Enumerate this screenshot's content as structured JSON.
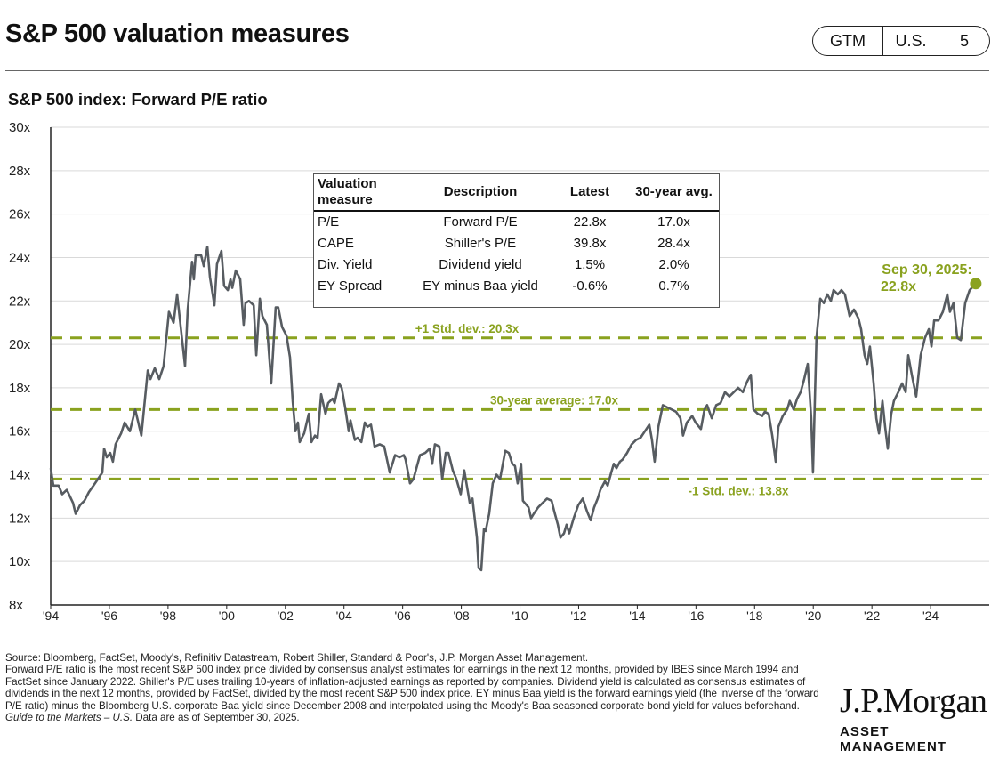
{
  "header": {
    "title": "S&P 500 valuation measures",
    "badge": [
      "GTM",
      "U.S.",
      "5"
    ]
  },
  "colors": {
    "line": "#575c61",
    "accent": "#8aa21f",
    "grid": "#d9d9d9"
  },
  "chart_data": {
    "type": "line",
    "title": "S&P 500 index: Forward P/E ratio",
    "xlabel": "",
    "ylabel": "",
    "ylim": [
      8,
      30
    ],
    "xlim": [
      1994,
      2025.75
    ],
    "grid": true,
    "y_ticks": [
      "8x",
      "10x",
      "12x",
      "14x",
      "16x",
      "18x",
      "20x",
      "22x",
      "24x",
      "26x",
      "28x",
      "30x"
    ],
    "y_tick_values": [
      8,
      10,
      12,
      14,
      16,
      18,
      20,
      22,
      24,
      26,
      28,
      30
    ],
    "x_ticks": [
      "'94",
      "'96",
      "'98",
      "'00",
      "'02",
      "'04",
      "'06",
      "'08",
      "'10",
      "'12",
      "'14",
      "'16",
      "'18",
      "'20",
      "'22",
      "'24"
    ],
    "x_tick_values": [
      1994,
      1996,
      1998,
      2000,
      2002,
      2004,
      2006,
      2008,
      2010,
      2012,
      2014,
      2016,
      2018,
      2020,
      2022,
      2024
    ],
    "series": [
      {
        "name": "Forward P/E",
        "points": [
          [
            1994.0,
            14.3
          ],
          [
            1994.09,
            13.5
          ],
          [
            1994.27,
            13.5
          ],
          [
            1994.39,
            13.1
          ],
          [
            1994.55,
            13.3
          ],
          [
            1994.76,
            12.7
          ],
          [
            1994.85,
            12.2
          ],
          [
            1995.0,
            12.6
          ],
          [
            1995.15,
            12.8
          ],
          [
            1995.3,
            13.2
          ],
          [
            1995.46,
            13.5
          ],
          [
            1995.61,
            13.8
          ],
          [
            1995.76,
            14.1
          ],
          [
            1995.82,
            15.2
          ],
          [
            1995.91,
            14.8
          ],
          [
            1996.03,
            15.0
          ],
          [
            1996.12,
            14.6
          ],
          [
            1996.21,
            15.4
          ],
          [
            1996.4,
            15.9
          ],
          [
            1996.52,
            16.4
          ],
          [
            1996.7,
            16.0
          ],
          [
            1996.88,
            17.0
          ],
          [
            1997.09,
            15.8
          ],
          [
            1997.31,
            18.8
          ],
          [
            1997.4,
            18.4
          ],
          [
            1997.55,
            18.9
          ],
          [
            1997.7,
            18.4
          ],
          [
            1997.85,
            19.0
          ],
          [
            1998.03,
            21.5
          ],
          [
            1998.19,
            21.0
          ],
          [
            1998.31,
            22.3
          ],
          [
            1998.58,
            19.0
          ],
          [
            1998.67,
            21.6
          ],
          [
            1998.82,
            23.8
          ],
          [
            1998.88,
            23.0
          ],
          [
            1998.94,
            24.1
          ],
          [
            1999.13,
            24.1
          ],
          [
            1999.22,
            23.6
          ],
          [
            1999.34,
            24.5
          ],
          [
            1999.43,
            23.1
          ],
          [
            1999.58,
            21.8
          ],
          [
            1999.67,
            23.7
          ],
          [
            1999.82,
            24.3
          ],
          [
            1999.91,
            22.7
          ],
          [
            2000.04,
            22.5
          ],
          [
            2000.13,
            23.0
          ],
          [
            2000.19,
            22.6
          ],
          [
            2000.31,
            23.4
          ],
          [
            2000.46,
            23.0
          ],
          [
            2000.58,
            20.9
          ],
          [
            2000.64,
            21.9
          ],
          [
            2000.76,
            22.0
          ],
          [
            2000.92,
            21.8
          ],
          [
            2001.01,
            19.5
          ],
          [
            2001.13,
            22.1
          ],
          [
            2001.22,
            21.3
          ],
          [
            2001.37,
            20.9
          ],
          [
            2001.52,
            18.2
          ],
          [
            2001.67,
            21.7
          ],
          [
            2001.76,
            21.7
          ],
          [
            2001.89,
            20.8
          ],
          [
            2002.04,
            20.4
          ],
          [
            2002.16,
            19.4
          ],
          [
            2002.25,
            17.4
          ],
          [
            2002.34,
            16.0
          ],
          [
            2002.43,
            16.4
          ],
          [
            2002.49,
            15.5
          ],
          [
            2002.64,
            15.9
          ],
          [
            2002.8,
            16.8
          ],
          [
            2002.89,
            15.5
          ],
          [
            2003.01,
            15.8
          ],
          [
            2003.1,
            15.7
          ],
          [
            2003.22,
            17.7
          ],
          [
            2003.37,
            16.8
          ],
          [
            2003.46,
            17.3
          ],
          [
            2003.61,
            17.5
          ],
          [
            2003.68,
            17.3
          ],
          [
            2003.83,
            18.2
          ],
          [
            2003.92,
            18.0
          ],
          [
            2004.04,
            17.1
          ],
          [
            2004.16,
            16.0
          ],
          [
            2004.22,
            16.5
          ],
          [
            2004.37,
            15.6
          ],
          [
            2004.46,
            15.7
          ],
          [
            2004.59,
            15.5
          ],
          [
            2004.71,
            16.4
          ],
          [
            2004.8,
            16.2
          ],
          [
            2004.92,
            16.3
          ],
          [
            2005.04,
            15.3
          ],
          [
            2005.22,
            15.4
          ],
          [
            2005.37,
            15.3
          ],
          [
            2005.56,
            14.1
          ],
          [
            2005.74,
            14.9
          ],
          [
            2005.89,
            14.8
          ],
          [
            2006.04,
            14.9
          ],
          [
            2006.1,
            14.7
          ],
          [
            2006.25,
            13.6
          ],
          [
            2006.37,
            13.8
          ],
          [
            2006.59,
            14.9
          ],
          [
            2006.77,
            15.0
          ],
          [
            2006.92,
            15.2
          ],
          [
            2007.01,
            14.5
          ],
          [
            2007.1,
            15.4
          ],
          [
            2007.25,
            15.3
          ],
          [
            2007.35,
            13.8
          ],
          [
            2007.47,
            15.0
          ],
          [
            2007.56,
            15.0
          ],
          [
            2007.71,
            14.2
          ],
          [
            2007.83,
            13.8
          ],
          [
            2007.98,
            13.1
          ],
          [
            2008.1,
            14.2
          ],
          [
            2008.29,
            12.7
          ],
          [
            2008.38,
            12.9
          ],
          [
            2008.53,
            11.1
          ],
          [
            2008.59,
            9.7
          ],
          [
            2008.68,
            9.6
          ],
          [
            2008.77,
            11.5
          ],
          [
            2008.83,
            11.4
          ],
          [
            2008.95,
            12.2
          ],
          [
            2009.07,
            13.6
          ],
          [
            2009.2,
            14.0
          ],
          [
            2009.32,
            13.8
          ],
          [
            2009.5,
            15.1
          ],
          [
            2009.62,
            15.0
          ],
          [
            2009.74,
            14.5
          ],
          [
            2009.83,
            14.4
          ],
          [
            2009.92,
            13.6
          ],
          [
            2010.04,
            14.5
          ],
          [
            2010.1,
            12.8
          ],
          [
            2010.29,
            12.5
          ],
          [
            2010.38,
            12.0
          ],
          [
            2010.47,
            12.2
          ],
          [
            2010.62,
            12.5
          ],
          [
            2010.77,
            12.7
          ],
          [
            2010.92,
            12.9
          ],
          [
            2011.08,
            12.8
          ],
          [
            2011.17,
            12.3
          ],
          [
            2011.29,
            11.7
          ],
          [
            2011.38,
            11.1
          ],
          [
            2011.5,
            11.3
          ],
          [
            2011.59,
            11.7
          ],
          [
            2011.68,
            11.3
          ],
          [
            2011.83,
            12.0
          ],
          [
            2011.99,
            12.6
          ],
          [
            2012.14,
            12.9
          ],
          [
            2012.29,
            12.3
          ],
          [
            2012.41,
            11.9
          ],
          [
            2012.53,
            12.5
          ],
          [
            2012.65,
            12.9
          ],
          [
            2012.74,
            13.3
          ],
          [
            2012.9,
            13.7
          ],
          [
            2012.99,
            13.5
          ],
          [
            2013.11,
            14.1
          ],
          [
            2013.2,
            14.5
          ],
          [
            2013.29,
            14.3
          ],
          [
            2013.41,
            14.6
          ],
          [
            2013.5,
            14.7
          ],
          [
            2013.65,
            15.0
          ],
          [
            2013.81,
            15.4
          ],
          [
            2013.96,
            15.6
          ],
          [
            2014.11,
            15.7
          ],
          [
            2014.26,
            16.0
          ],
          [
            2014.41,
            16.3
          ],
          [
            2014.5,
            15.6
          ],
          [
            2014.59,
            14.6
          ],
          [
            2014.72,
            16.2
          ],
          [
            2014.87,
            17.2
          ],
          [
            2015.02,
            17.1
          ],
          [
            2015.17,
            17.0
          ],
          [
            2015.32,
            16.9
          ],
          [
            2015.47,
            16.6
          ],
          [
            2015.56,
            15.8
          ],
          [
            2015.69,
            16.4
          ],
          [
            2015.87,
            16.7
          ],
          [
            2015.99,
            16.4
          ],
          [
            2016.17,
            16.1
          ],
          [
            2016.29,
            17.0
          ],
          [
            2016.38,
            17.2
          ],
          [
            2016.54,
            16.6
          ],
          [
            2016.69,
            17.2
          ],
          [
            2016.84,
            17.3
          ],
          [
            2016.99,
            17.8
          ],
          [
            2017.14,
            17.6
          ],
          [
            2017.29,
            17.8
          ],
          [
            2017.44,
            18.0
          ],
          [
            2017.6,
            17.8
          ],
          [
            2017.75,
            18.3
          ],
          [
            2017.87,
            18.6
          ],
          [
            2017.96,
            17.0
          ],
          [
            2018.11,
            16.8
          ],
          [
            2018.26,
            16.7
          ],
          [
            2018.35,
            16.9
          ],
          [
            2018.48,
            16.8
          ],
          [
            2018.6,
            15.8
          ],
          [
            2018.72,
            14.6
          ],
          [
            2018.81,
            16.2
          ],
          [
            2018.96,
            16.7
          ],
          [
            2019.11,
            17.0
          ],
          [
            2019.2,
            17.4
          ],
          [
            2019.33,
            17.0
          ],
          [
            2019.45,
            17.5
          ],
          [
            2019.57,
            17.8
          ],
          [
            2019.69,
            18.4
          ],
          [
            2019.81,
            19.1
          ],
          [
            2019.93,
            16.6
          ],
          [
            2019.99,
            14.1
          ],
          [
            2020.11,
            20.3
          ],
          [
            2020.24,
            22.1
          ],
          [
            2020.36,
            21.9
          ],
          [
            2020.48,
            22.3
          ],
          [
            2020.6,
            22.0
          ],
          [
            2020.69,
            22.5
          ],
          [
            2020.84,
            22.3
          ],
          [
            2020.96,
            22.5
          ],
          [
            2021.08,
            22.3
          ],
          [
            2021.24,
            21.3
          ],
          [
            2021.39,
            21.6
          ],
          [
            2021.54,
            21.2
          ],
          [
            2021.63,
            20.7
          ],
          [
            2021.75,
            19.5
          ],
          [
            2021.84,
            19.1
          ],
          [
            2021.93,
            19.9
          ],
          [
            2022.06,
            18.2
          ],
          [
            2022.15,
            16.6
          ],
          [
            2022.24,
            15.9
          ],
          [
            2022.36,
            17.4
          ],
          [
            2022.45,
            16.2
          ],
          [
            2022.54,
            15.2
          ],
          [
            2022.66,
            16.8
          ],
          [
            2022.75,
            17.4
          ],
          [
            2022.9,
            17.8
          ],
          [
            2023.03,
            18.2
          ],
          [
            2023.15,
            17.8
          ],
          [
            2023.24,
            19.5
          ],
          [
            2023.36,
            18.6
          ],
          [
            2023.51,
            17.6
          ],
          [
            2023.66,
            19.5
          ],
          [
            2023.81,
            20.3
          ],
          [
            2023.94,
            20.7
          ],
          [
            2024.03,
            19.9
          ],
          [
            2024.12,
            21.1
          ],
          [
            2024.27,
            21.1
          ],
          [
            2024.42,
            21.5
          ],
          [
            2024.57,
            22.3
          ],
          [
            2024.66,
            21.5
          ],
          [
            2024.78,
            21.9
          ],
          [
            2024.91,
            20.3
          ],
          [
            2025.03,
            20.2
          ],
          [
            2025.18,
            21.9
          ],
          [
            2025.33,
            22.5
          ],
          [
            2025.54,
            22.8
          ]
        ]
      }
    ],
    "reference_lines": [
      {
        "value": 20.3,
        "label": "+1 Std. dev.: 20.3x"
      },
      {
        "value": 17.0,
        "label": "30-year average: 17.0x"
      },
      {
        "value": 13.8,
        "label": "-1 Std. dev.: 13.8x"
      }
    ],
    "latest_annotation": {
      "line1": "Sep 30, 2025:",
      "line2": "22.8x",
      "value": 22.8
    }
  },
  "valuation_table": {
    "headers": [
      "Valuation measure",
      "Description",
      "Latest",
      "30-year avg."
    ],
    "header_first_line1": "Valuation",
    "header_first_line2": "measure",
    "rows": [
      [
        "P/E",
        "Forward P/E",
        "22.8x",
        "17.0x"
      ],
      [
        "CAPE",
        "Shiller's P/E",
        "39.8x",
        "28.4x"
      ],
      [
        "Div. Yield",
        "Dividend yield",
        "1.5%",
        "2.0%"
      ],
      [
        "EY Spread",
        "EY minus Baa yield",
        "-0.6%",
        "0.7%"
      ]
    ]
  },
  "footer": {
    "source": "Source: Bloomberg, FactSet, Moody's, Refinitiv Datastream, Robert Shiller, Standard & Poor's, J.P. Morgan Asset Management.",
    "note": "Forward P/E ratio is the most recent S&P 500 index price divided by consensus analyst estimates for earnings in the next 12 months, provided by IBES since March 1994 and FactSet since January 2022. Shiller's P/E uses trailing 10-years of inflation-adjusted earnings as reported by companies. Dividend yield is calculated as consensus estimates of dividends in the next 12 months, provided by FactSet, divided by the most recent S&P 500 index price. EY minus Baa yield is the forward earnings yield (the inverse of the forward P/E ratio) minus the Bloomberg U.S. corporate Baa yield since December 2008 and interpolated using the Moody's Baa seasoned corporate bond yield for values beforehand.",
    "guide_italic": "Guide to the Markets – U.S.",
    "as_of": " Data are as of September 30, 2025."
  },
  "logo": {
    "name": "J.P.Morgan",
    "sub": "ASSET MANAGEMENT"
  }
}
